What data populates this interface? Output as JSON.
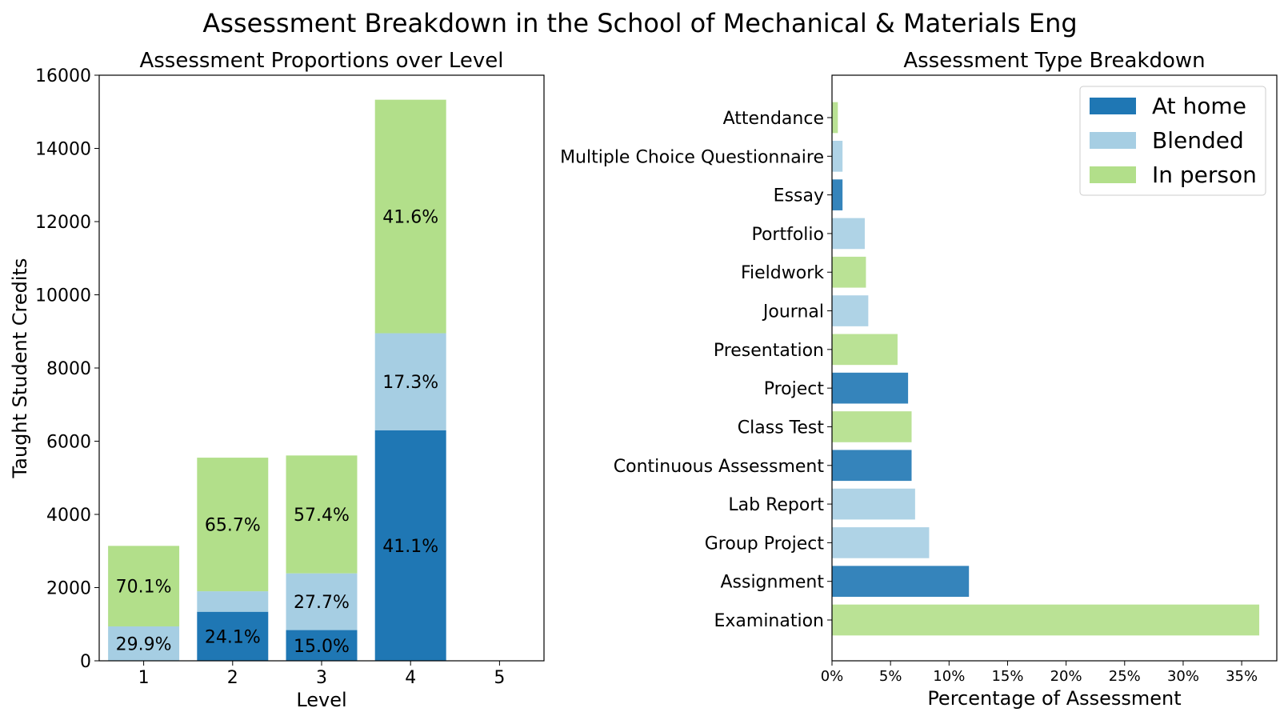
{
  "suptitle": "Assessment Breakdown in the School of Mechanical & Materials Eng",
  "colors": {
    "At home": "#1f77b4",
    "Blended": "#a6cee3",
    "In person": "#b2df8a"
  },
  "chart_data": [
    {
      "type": "bar",
      "stacked": true,
      "title": "Assessment Proportions over Level",
      "xlabel": "Level",
      "ylabel": "Taught Student Credits",
      "categories": [
        "1",
        "2",
        "3",
        "4",
        "5"
      ],
      "ylim": [
        0,
        16000
      ],
      "yticks": [
        0,
        2000,
        4000,
        6000,
        8000,
        10000,
        12000,
        14000,
        16000
      ],
      "series": [
        {
          "name": "At home",
          "color": "#1f77b4",
          "values": [
            0,
            1340,
            840,
            6300,
            0
          ],
          "labels": [
            "",
            "24.1%",
            "15.0%",
            "41.1%",
            ""
          ]
        },
        {
          "name": "Blended",
          "color": "#a6cee3",
          "values": [
            940,
            560,
            1550,
            2650,
            0
          ],
          "labels": [
            "29.9%",
            "",
            "27.7%",
            "17.3%",
            ""
          ]
        },
        {
          "name": "In person",
          "color": "#b2df8a",
          "values": [
            2200,
            3650,
            3220,
            6380,
            0
          ],
          "labels": [
            "70.1%",
            "65.7%",
            "57.4%",
            "41.6%",
            ""
          ]
        }
      ],
      "grid": false
    },
    {
      "type": "bar",
      "orientation": "horizontal",
      "title": "Assessment Type Breakdown",
      "xlabel": "Percentage of Assessment",
      "xlim": [
        0,
        38
      ],
      "xticks": [
        0,
        5,
        10,
        15,
        20,
        25,
        30,
        35
      ],
      "xtick_labels": [
        "0%",
        "5%",
        "10%",
        "15%",
        "20%",
        "25%",
        "30%",
        "35%"
      ],
      "categories": [
        "Attendance",
        "Multiple Choice Questionnaire",
        "Essay",
        "Portfolio",
        "Fieldwork",
        "Journal",
        "Presentation",
        "Project",
        "Class Test",
        "Continuous Assessment",
        "Lab Report",
        "Group Project",
        "Assignment",
        "Examination"
      ],
      "values": [
        0.5,
        0.9,
        0.9,
        2.8,
        2.9,
        3.1,
        5.6,
        6.5,
        6.8,
        6.8,
        7.1,
        8.3,
        11.7,
        36.5
      ],
      "types": [
        "In person",
        "Blended",
        "At home",
        "Blended",
        "In person",
        "Blended",
        "In person",
        "At home",
        "In person",
        "At home",
        "Blended",
        "Blended",
        "At home",
        "In person"
      ],
      "legend": {
        "entries": [
          "At home",
          "Blended",
          "In person"
        ],
        "position": "upper right"
      },
      "grid": false
    }
  ]
}
